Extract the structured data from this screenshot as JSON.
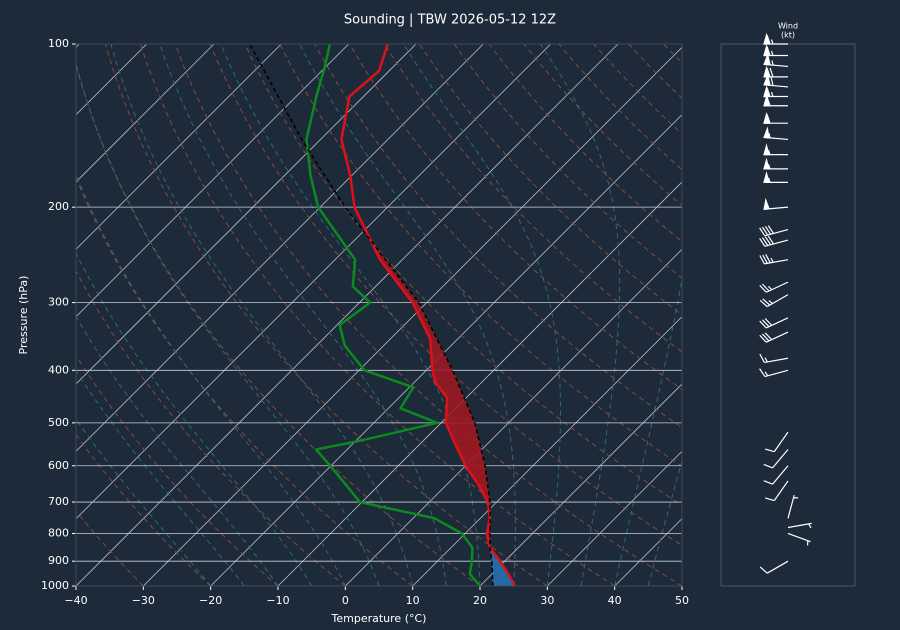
{
  "chart_data": {
    "type": "skewt",
    "title": "Sounding | TBW 2026-05-12 12Z",
    "xlabel": "Temperature (°C)",
    "ylabel": "Pressure (hPa)",
    "xlim": [
      -40,
      50
    ],
    "ylim": [
      1000,
      100
    ],
    "log_y": true,
    "grid": true,
    "xticks": [
      {
        "value": -40,
        "label": "−40"
      },
      {
        "value": -30,
        "label": "−30"
      },
      {
        "value": -20,
        "label": "−20"
      },
      {
        "value": -10,
        "label": "−10"
      },
      0,
      10,
      20,
      30,
      40,
      50
    ],
    "yticks": [
      100,
      200,
      300,
      400,
      500,
      600,
      700,
      800,
      900,
      1000
    ],
    "series": [
      {
        "color": "#e0101a",
        "style": "solid",
        "pressure": [
          1000,
          950,
          900,
          850,
          800,
          750,
          700,
          650,
          600,
          550,
          500,
          450,
          420,
          400,
          350,
          300,
          250,
          200,
          175,
          150,
          125,
          112,
          100
        ],
        "values": [
          25.2,
          22.4,
          19.3,
          15.8,
          13.2,
          11.4,
          8.7,
          4.7,
          0,
          -4.5,
          -9.3,
          -12.8,
          -17,
          -19.1,
          -24.1,
          -32.1,
          -43.3,
          -54.9,
          -60.2,
          -66.9,
          -72.1,
          -71.5,
          -74.2
        ]
      },
      {
        "color": "#0b8a1f",
        "style": "solid",
        "pressure": [
          1000,
          950,
          900,
          850,
          800,
          750,
          700,
          650,
          600,
          560,
          540,
          500,
          470,
          430,
          400,
          360,
          330,
          300,
          280,
          250,
          200,
          175,
          150,
          125,
          110,
          100
        ],
        "values": [
          20,
          16.7,
          15.1,
          13.2,
          9.5,
          3.2,
          -10.3,
          -15,
          -20.1,
          -24.6,
          -19.5,
          -10.6,
          -18.2,
          -19.4,
          -29.2,
          -35.8,
          -39.6,
          -38.4,
          -43.4,
          -47,
          -60.3,
          -66.1,
          -72.1,
          -77,
          -80.2,
          -82.8
        ]
      },
      {
        "color": "#000000",
        "style": "dashed",
        "pressure": [
          1000,
          900,
          850,
          700,
          600,
          500,
          400,
          300,
          250,
          200,
          150,
          100
        ],
        "values": [
          21.9,
          18.1,
          15.8,
          9,
          2.9,
          -5,
          -16.1,
          -31.2,
          -42.5,
          -56.3,
          -72.8,
          -94.7
        ]
      }
    ],
    "wind_title": [
      "Wind",
      "(kt)"
    ],
    "winds": {
      "pressure": [
        100,
        105,
        110,
        115,
        120,
        125,
        130,
        140,
        150,
        160,
        170,
        180,
        200,
        220,
        230,
        250,
        275,
        290,
        320,
        340,
        380,
        400,
        520,
        560,
        600,
        640,
        750,
        780,
        800,
        900
      ],
      "direction": [
        270,
        270,
        275,
        270,
        275,
        270,
        270,
        270,
        275,
        270,
        270,
        270,
        265,
        255,
        255,
        260,
        245,
        240,
        245,
        245,
        260,
        255,
        215,
        220,
        220,
        215,
        15,
        80,
        110,
        240
      ],
      "speed": [
        65,
        65,
        65,
        70,
        70,
        65,
        60,
        60,
        55,
        55,
        55,
        55,
        50,
        40,
        40,
        35,
        25,
        25,
        30,
        30,
        15,
        15,
        10,
        10,
        10,
        10,
        5,
        5,
        5,
        10
      ]
    }
  }
}
